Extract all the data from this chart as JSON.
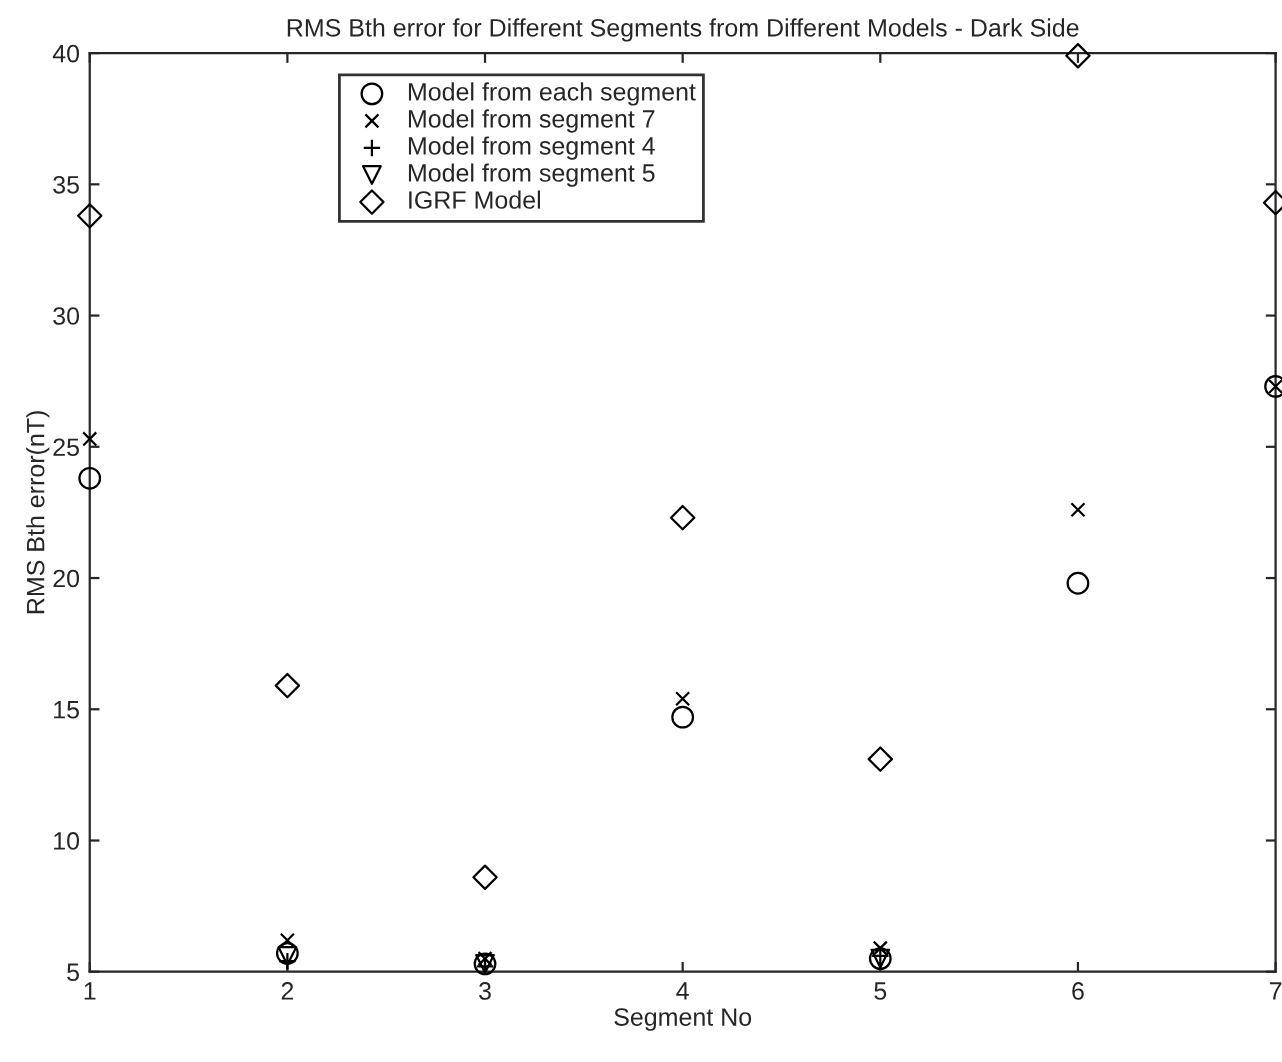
{
  "chart_data": {
    "type": "scatter",
    "title": "RMS Bth error for Different Segments from Different Models - Dark Side",
    "xlabel": "Segment No",
    "ylabel": "RMS Bth error(nT)",
    "x": [
      1,
      2,
      3,
      4,
      5,
      6,
      7
    ],
    "series": [
      {
        "name": "Model from each segment",
        "color": "#000000",
        "marker": "circle",
        "values": [
          23.8,
          5.7,
          5.3,
          14.7,
          5.5,
          19.8,
          27.3
        ]
      },
      {
        "name": "Model from segment 7",
        "color": "#000000",
        "marker": "cross",
        "values": [
          25.3,
          6.2,
          5.5,
          15.4,
          5.9,
          22.6,
          27.3
        ]
      },
      {
        "name": "Model from segment 4",
        "color": "#000000",
        "marker": "plus",
        "values": [
          null,
          5.4,
          5.2,
          null,
          5.6,
          null,
          null
        ]
      },
      {
        "name": "Model from segment 5",
        "color": "#000000",
        "marker": "triangle",
        "values": [
          null,
          5.6,
          5.3,
          null,
          5.5,
          null,
          null
        ]
      },
      {
        "name": "IGRF Model",
        "color": "#000000",
        "marker": "diamond",
        "values": [
          33.8,
          15.9,
          8.6,
          22.3,
          13.1,
          39.9,
          34.3
        ]
      }
    ],
    "xlim": [
      1,
      7
    ],
    "ylim": [
      5,
      40
    ],
    "xticks": [
      1,
      2,
      3,
      4,
      5,
      6,
      7
    ],
    "yticks": [
      5,
      10,
      15,
      20,
      25,
      30,
      35,
      40
    ],
    "grid": false,
    "legend": "top left"
  }
}
